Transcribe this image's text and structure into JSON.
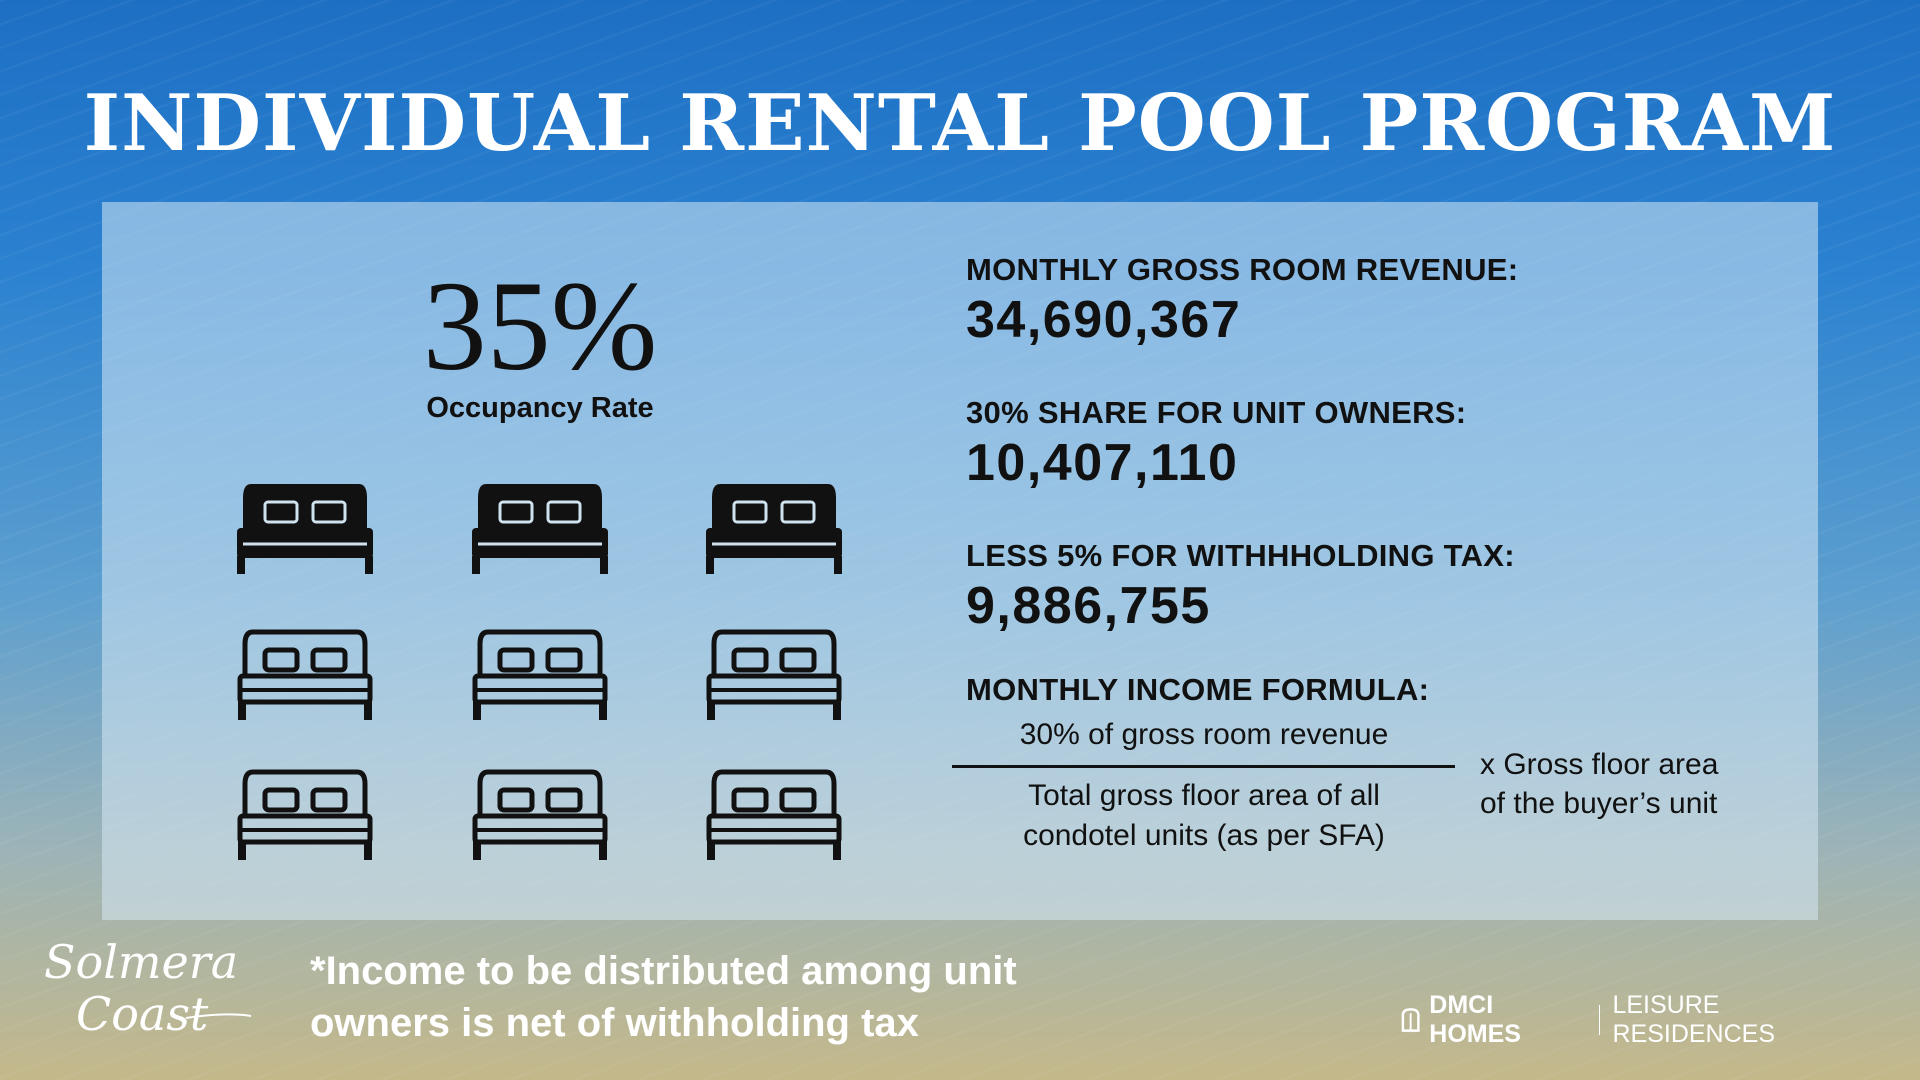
{
  "title": "INDIVIDUAL RENTAL POOL PROGRAM",
  "occupancy": {
    "value": "35%",
    "label": "Occupancy Rate",
    "beds_total": 9,
    "beds_occupied": 3
  },
  "stats": [
    {
      "label": "MONTHLY GROSS ROOM REVENUE:",
      "value": "34,690,367"
    },
    {
      "label": "30% SHARE FOR UNIT OWNERS:",
      "value": "10,407,110"
    },
    {
      "label": "LESS 5% FOR WITHHHOLDING TAX:",
      "value": "9,886,755"
    }
  ],
  "formula": {
    "heading": "MONTHLY INCOME FORMULA:",
    "numerator": "30% of gross room revenue",
    "denominator_line1": "Total gross floor area of all",
    "denominator_line2": "condotel units (as per SFA)",
    "multiplier_line1": "x Gross floor area",
    "multiplier_line2": "of the buyer’s unit"
  },
  "footnote": {
    "line1": "*Income to be distributed among unit",
    "line2": "owners is net of withholding tax"
  },
  "logos": {
    "left_line1": "Solmera",
    "left_line2": "Coast",
    "brand": "DMCI HOMES",
    "sub": "LEISURE RESIDENCES"
  },
  "colors": {
    "occupied_bed": "#111111",
    "empty_bed": "#111111",
    "text_dark": "#111111",
    "text_light": "#ffffff"
  }
}
